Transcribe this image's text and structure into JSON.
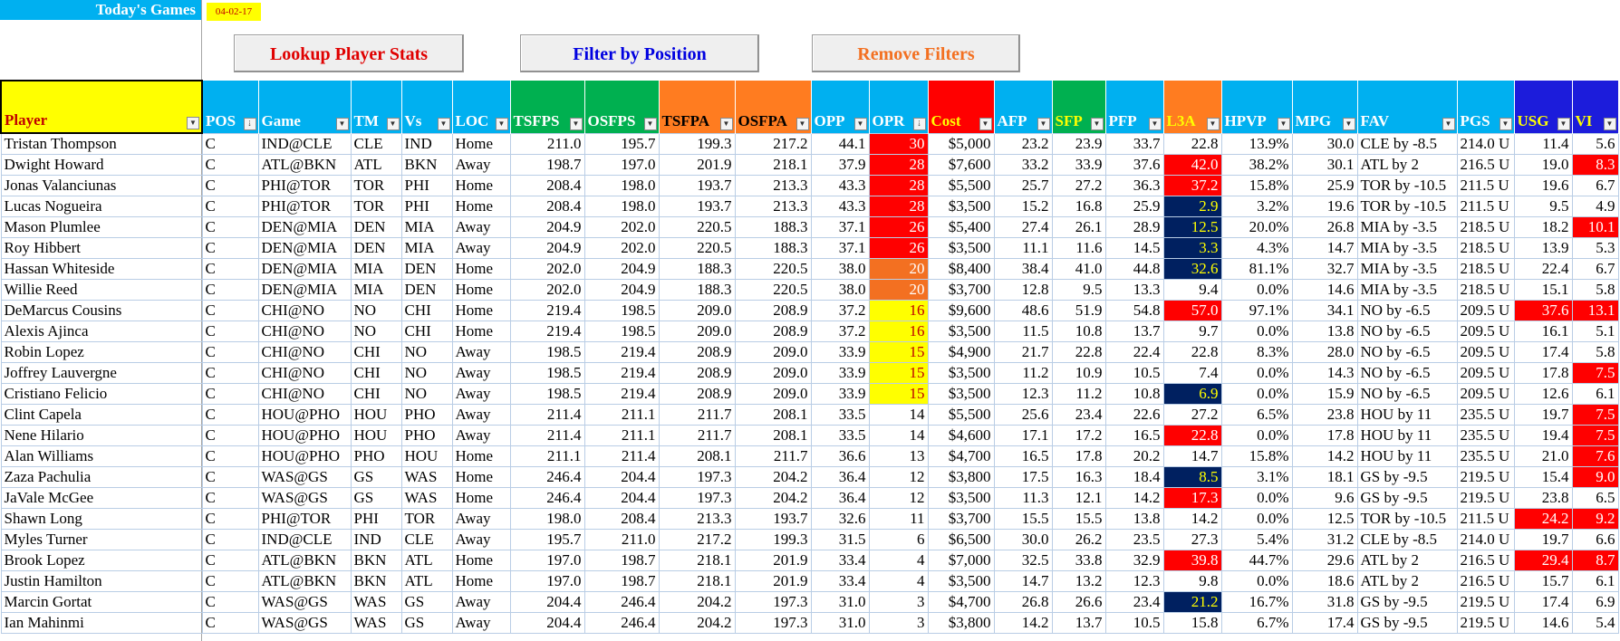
{
  "header": {
    "title": "Today's Games",
    "date": "04-02-17"
  },
  "buttons": {
    "lookup": "Lookup Player Stats",
    "filter": "Filter by Position",
    "remove": "Remove Filters"
  },
  "colors": {
    "red": "#ff0000",
    "orange": "#f37021",
    "yellow": "#ffff00",
    "navy": "#002060",
    "header_blue": "#00b0f0",
    "header_green": "#00b050",
    "header_orange": "#ff7c20",
    "header_yellow": "#ffff00",
    "header_navy": "#1c1cdb"
  },
  "columns": [
    {
      "key": "player",
      "label": "Player",
      "width": 222,
      "bg": "#ffff00",
      "fg": "#c00000",
      "align": "l"
    },
    {
      "key": "pos",
      "label": "POS",
      "width": 62,
      "bg": "#00b0f0",
      "fg": "#ffffff",
      "align": "l",
      "sorted": true
    },
    {
      "key": "game",
      "label": "Game",
      "width": 102,
      "bg": "#00b0f0",
      "fg": "#ffffff",
      "align": "l"
    },
    {
      "key": "tm",
      "label": "TM",
      "width": 56,
      "bg": "#00b0f0",
      "fg": "#ffffff",
      "align": "l"
    },
    {
      "key": "vs",
      "label": "Vs",
      "width": 56,
      "bg": "#00b0f0",
      "fg": "#ffffff",
      "align": "l"
    },
    {
      "key": "loc",
      "label": "LOC",
      "width": 64,
      "bg": "#00b0f0",
      "fg": "#ffffff",
      "align": "l"
    },
    {
      "key": "tsfps",
      "label": "TSFPS",
      "width": 82,
      "bg": "#00b050",
      "fg": "#ffffff",
      "align": "r"
    },
    {
      "key": "osfps",
      "label": "OSFPS",
      "width": 82,
      "bg": "#00b050",
      "fg": "#ffffff",
      "align": "r"
    },
    {
      "key": "tsfpa",
      "label": "TSFPA",
      "width": 84,
      "bg": "#ff7c20",
      "fg": "#000000",
      "align": "r"
    },
    {
      "key": "osfpa",
      "label": "OSFPA",
      "width": 84,
      "bg": "#ff7c20",
      "fg": "#000000",
      "align": "r"
    },
    {
      "key": "opp",
      "label": "OPP",
      "width": 64,
      "bg": "#00b0f0",
      "fg": "#ffffff",
      "align": "r"
    },
    {
      "key": "opr",
      "label": "OPR",
      "width": 65,
      "bg": "#00b0f0",
      "fg": "#ffffff",
      "align": "r",
      "sorted": true
    },
    {
      "key": "cost",
      "label": "Cost",
      "width": 73,
      "bg": "#ff0000",
      "fg": "#ffff00",
      "align": "r"
    },
    {
      "key": "afp",
      "label": "AFP",
      "width": 64,
      "bg": "#00b0f0",
      "fg": "#ffffff",
      "align": "r"
    },
    {
      "key": "sfp",
      "label": "SFP",
      "width": 59,
      "bg": "#00b050",
      "fg": "#ffff00",
      "align": "r"
    },
    {
      "key": "pfp",
      "label": "PFP",
      "width": 64,
      "bg": "#00b0f0",
      "fg": "#ffffff",
      "align": "r"
    },
    {
      "key": "l3a",
      "label": "L3A",
      "width": 64,
      "bg": "#ff7c20",
      "fg": "#ffff00",
      "align": "r"
    },
    {
      "key": "hpvp",
      "label": "HPVP",
      "width": 78,
      "bg": "#00b0f0",
      "fg": "#ffffff",
      "align": "r"
    },
    {
      "key": "mpg",
      "label": "MPG",
      "width": 72,
      "bg": "#00b0f0",
      "fg": "#ffffff",
      "align": "r"
    },
    {
      "key": "fav",
      "label": "FAV",
      "width": 110,
      "bg": "#00b0f0",
      "fg": "#ffffff",
      "align": "l"
    },
    {
      "key": "pgs",
      "label": "PGS",
      "width": 63,
      "bg": "#00b0f0",
      "fg": "#ffffff",
      "align": "l"
    },
    {
      "key": "usg",
      "label": "USG",
      "width": 64,
      "bg": "#1c1cdb",
      "fg": "#ffff00",
      "align": "r"
    },
    {
      "key": "vi",
      "label": "VI",
      "width": 51,
      "bg": "#1c1cdb",
      "fg": "#ffff00",
      "align": "r"
    }
  ],
  "rows": [
    {
      "player": "Tristan Thompson",
      "pos": "C",
      "game": "IND@CLE",
      "tm": "CLE",
      "vs": "IND",
      "loc": "Home",
      "tsfps": "211.0",
      "osfps": "195.7",
      "tsfpa": "199.3",
      "osfpa": "217.2",
      "opp": "44.1",
      "opr": "30",
      "cost": "$5,000",
      "afp": "23.2",
      "sfp": "23.9",
      "pfp": "33.7",
      "l3a": "22.8",
      "hpvp": "13.9%",
      "mpg": "30.0",
      "fav": "CLE by -8.5",
      "pgs": "214.0 U",
      "usg": "11.4",
      "vi": "5.6",
      "hl": {
        "opr": "red"
      }
    },
    {
      "player": "Dwight Howard",
      "pos": "C",
      "game": "ATL@BKN",
      "tm": "ATL",
      "vs": "BKN",
      "loc": "Away",
      "tsfps": "198.7",
      "osfps": "197.0",
      "tsfpa": "201.9",
      "osfpa": "218.1",
      "opp": "37.9",
      "opr": "28",
      "cost": "$7,600",
      "afp": "33.2",
      "sfp": "33.9",
      "pfp": "37.6",
      "l3a": "42.0",
      "hpvp": "38.2%",
      "mpg": "30.1",
      "fav": "ATL by 2",
      "pgs": "216.5 U",
      "usg": "19.0",
      "vi": "8.3",
      "hl": {
        "opr": "red",
        "l3a": "red",
        "vi": "red"
      }
    },
    {
      "player": "Jonas Valanciunas",
      "pos": "C",
      "game": "PHI@TOR",
      "tm": "TOR",
      "vs": "PHI",
      "loc": "Home",
      "tsfps": "208.4",
      "osfps": "198.0",
      "tsfpa": "193.7",
      "osfpa": "213.3",
      "opp": "43.3",
      "opr": "28",
      "cost": "$5,500",
      "afp": "25.7",
      "sfp": "27.2",
      "pfp": "36.3",
      "l3a": "37.2",
      "hpvp": "15.8%",
      "mpg": "25.9",
      "fav": "TOR by -10.5",
      "pgs": "211.5 U",
      "usg": "19.6",
      "vi": "6.7",
      "hl": {
        "opr": "red",
        "l3a": "red"
      }
    },
    {
      "player": "Lucas Nogueira",
      "pos": "C",
      "game": "PHI@TOR",
      "tm": "TOR",
      "vs": "PHI",
      "loc": "Home",
      "tsfps": "208.4",
      "osfps": "198.0",
      "tsfpa": "193.7",
      "osfpa": "213.3",
      "opp": "43.3",
      "opr": "28",
      "cost": "$3,500",
      "afp": "15.2",
      "sfp": "16.8",
      "pfp": "25.9",
      "l3a": "2.9",
      "hpvp": "3.2%",
      "mpg": "19.6",
      "fav": "TOR by -10.5",
      "pgs": "211.5 U",
      "usg": "9.5",
      "vi": "4.9",
      "hl": {
        "opr": "red",
        "l3a": "navy"
      }
    },
    {
      "player": "Mason Plumlee",
      "pos": "C",
      "game": "DEN@MIA",
      "tm": "DEN",
      "vs": "MIA",
      "loc": "Away",
      "tsfps": "204.9",
      "osfps": "202.0",
      "tsfpa": "220.5",
      "osfpa": "188.3",
      "opp": "37.1",
      "opr": "26",
      "cost": "$5,400",
      "afp": "27.4",
      "sfp": "26.1",
      "pfp": "28.9",
      "l3a": "12.5",
      "hpvp": "20.0%",
      "mpg": "26.8",
      "fav": "MIA by -3.5",
      "pgs": "218.5 U",
      "usg": "18.2",
      "vi": "10.1",
      "hl": {
        "opr": "red",
        "l3a": "navy",
        "vi": "red"
      }
    },
    {
      "player": "Roy Hibbert",
      "pos": "C",
      "game": "DEN@MIA",
      "tm": "DEN",
      "vs": "MIA",
      "loc": "Away",
      "tsfps": "204.9",
      "osfps": "202.0",
      "tsfpa": "220.5",
      "osfpa": "188.3",
      "opp": "37.1",
      "opr": "26",
      "cost": "$3,500",
      "afp": "11.1",
      "sfp": "11.6",
      "pfp": "14.5",
      "l3a": "3.3",
      "hpvp": "4.3%",
      "mpg": "14.7",
      "fav": "MIA by -3.5",
      "pgs": "218.5 U",
      "usg": "13.9",
      "vi": "5.3",
      "hl": {
        "opr": "red",
        "l3a": "navy"
      }
    },
    {
      "player": "Hassan Whiteside",
      "pos": "C",
      "game": "DEN@MIA",
      "tm": "MIA",
      "vs": "DEN",
      "loc": "Home",
      "tsfps": "202.0",
      "osfps": "204.9",
      "tsfpa": "188.3",
      "osfpa": "220.5",
      "opp": "38.0",
      "opr": "20",
      "cost": "$8,400",
      "afp": "38.4",
      "sfp": "41.0",
      "pfp": "44.8",
      "l3a": "32.6",
      "hpvp": "81.1%",
      "mpg": "32.7",
      "fav": "MIA by -3.5",
      "pgs": "218.5 U",
      "usg": "22.4",
      "vi": "6.7",
      "hl": {
        "opr": "orange",
        "l3a": "navy"
      }
    },
    {
      "player": "Willie Reed",
      "pos": "C",
      "game": "DEN@MIA",
      "tm": "MIA",
      "vs": "DEN",
      "loc": "Home",
      "tsfps": "202.0",
      "osfps": "204.9",
      "tsfpa": "188.3",
      "osfpa": "220.5",
      "opp": "38.0",
      "opr": "20",
      "cost": "$3,700",
      "afp": "12.8",
      "sfp": "9.5",
      "pfp": "13.3",
      "l3a": "9.4",
      "hpvp": "0.0%",
      "mpg": "14.6",
      "fav": "MIA by -3.5",
      "pgs": "218.5 U",
      "usg": "15.1",
      "vi": "5.8",
      "hl": {
        "opr": "orange"
      }
    },
    {
      "player": "DeMarcus Cousins",
      "pos": "C",
      "game": "CHI@NO",
      "tm": "NO",
      "vs": "CHI",
      "loc": "Home",
      "tsfps": "219.4",
      "osfps": "198.5",
      "tsfpa": "209.0",
      "osfpa": "208.9",
      "opp": "37.2",
      "opr": "16",
      "cost": "$9,600",
      "afp": "48.6",
      "sfp": "51.9",
      "pfp": "54.8",
      "l3a": "57.0",
      "hpvp": "97.1%",
      "mpg": "34.1",
      "fav": "NO by -6.5",
      "pgs": "209.5 U",
      "usg": "37.6",
      "vi": "13.1",
      "hl": {
        "opr": "yellow",
        "l3a": "red",
        "usg": "red",
        "vi": "red"
      }
    },
    {
      "player": "Alexis Ajinca",
      "pos": "C",
      "game": "CHI@NO",
      "tm": "NO",
      "vs": "CHI",
      "loc": "Home",
      "tsfps": "219.4",
      "osfps": "198.5",
      "tsfpa": "209.0",
      "osfpa": "208.9",
      "opp": "37.2",
      "opr": "16",
      "cost": "$3,500",
      "afp": "11.5",
      "sfp": "10.8",
      "pfp": "13.7",
      "l3a": "9.7",
      "hpvp": "0.0%",
      "mpg": "13.8",
      "fav": "NO by -6.5",
      "pgs": "209.5 U",
      "usg": "16.1",
      "vi": "5.1",
      "hl": {
        "opr": "yellow"
      }
    },
    {
      "player": "Robin Lopez",
      "pos": "C",
      "game": "CHI@NO",
      "tm": "CHI",
      "vs": "NO",
      "loc": "Away",
      "tsfps": "198.5",
      "osfps": "219.4",
      "tsfpa": "208.9",
      "osfpa": "209.0",
      "opp": "33.9",
      "opr": "15",
      "cost": "$4,900",
      "afp": "21.7",
      "sfp": "22.8",
      "pfp": "22.4",
      "l3a": "22.8",
      "hpvp": "8.3%",
      "mpg": "28.0",
      "fav": "NO by -6.5",
      "pgs": "209.5 U",
      "usg": "17.4",
      "vi": "5.8",
      "hl": {
        "opr": "yellow"
      }
    },
    {
      "player": "Joffrey Lauvergne",
      "pos": "C",
      "game": "CHI@NO",
      "tm": "CHI",
      "vs": "NO",
      "loc": "Away",
      "tsfps": "198.5",
      "osfps": "219.4",
      "tsfpa": "208.9",
      "osfpa": "209.0",
      "opp": "33.9",
      "opr": "15",
      "cost": "$3,500",
      "afp": "11.2",
      "sfp": "10.9",
      "pfp": "10.5",
      "l3a": "7.4",
      "hpvp": "0.0%",
      "mpg": "14.3",
      "fav": "NO by -6.5",
      "pgs": "209.5 U",
      "usg": "17.8",
      "vi": "7.5",
      "hl": {
        "opr": "yellow",
        "vi": "red"
      }
    },
    {
      "player": "Cristiano Felicio",
      "pos": "C",
      "game": "CHI@NO",
      "tm": "CHI",
      "vs": "NO",
      "loc": "Away",
      "tsfps": "198.5",
      "osfps": "219.4",
      "tsfpa": "208.9",
      "osfpa": "209.0",
      "opp": "33.9",
      "opr": "15",
      "cost": "$3,500",
      "afp": "12.3",
      "sfp": "11.2",
      "pfp": "10.8",
      "l3a": "6.9",
      "hpvp": "0.0%",
      "mpg": "15.9",
      "fav": "NO by -6.5",
      "pgs": "209.5 U",
      "usg": "12.6",
      "vi": "6.1",
      "hl": {
        "opr": "yellow",
        "l3a": "navy"
      }
    },
    {
      "player": "Clint Capela",
      "pos": "C",
      "game": "HOU@PHO",
      "tm": "HOU",
      "vs": "PHO",
      "loc": "Away",
      "tsfps": "211.4",
      "osfps": "211.1",
      "tsfpa": "211.7",
      "osfpa": "208.1",
      "opp": "33.5",
      "opr": "14",
      "cost": "$5,500",
      "afp": "25.6",
      "sfp": "23.4",
      "pfp": "22.6",
      "l3a": "27.2",
      "hpvp": "6.5%",
      "mpg": "23.8",
      "fav": "HOU by 11",
      "pgs": "235.5 U",
      "usg": "19.7",
      "vi": "7.5",
      "hl": {
        "vi": "red"
      }
    },
    {
      "player": "Nene Hilario",
      "pos": "C",
      "game": "HOU@PHO",
      "tm": "HOU",
      "vs": "PHO",
      "loc": "Away",
      "tsfps": "211.4",
      "osfps": "211.1",
      "tsfpa": "211.7",
      "osfpa": "208.1",
      "opp": "33.5",
      "opr": "14",
      "cost": "$4,600",
      "afp": "17.1",
      "sfp": "17.2",
      "pfp": "16.5",
      "l3a": "22.8",
      "hpvp": "0.0%",
      "mpg": "17.8",
      "fav": "HOU by 11",
      "pgs": "235.5 U",
      "usg": "19.4",
      "vi": "7.5",
      "hl": {
        "l3a": "red",
        "vi": "red"
      }
    },
    {
      "player": "Alan Williams",
      "pos": "C",
      "game": "HOU@PHO",
      "tm": "PHO",
      "vs": "HOU",
      "loc": "Home",
      "tsfps": "211.1",
      "osfps": "211.4",
      "tsfpa": "208.1",
      "osfpa": "211.7",
      "opp": "36.6",
      "opr": "13",
      "cost": "$4,700",
      "afp": "16.5",
      "sfp": "17.8",
      "pfp": "20.2",
      "l3a": "14.7",
      "hpvp": "15.8%",
      "mpg": "14.2",
      "fav": "HOU by 11",
      "pgs": "235.5 U",
      "usg": "21.0",
      "vi": "7.6",
      "hl": {
        "vi": "red"
      }
    },
    {
      "player": "Zaza Pachulia",
      "pos": "C",
      "game": "WAS@GS",
      "tm": "GS",
      "vs": "WAS",
      "loc": "Home",
      "tsfps": "246.4",
      "osfps": "204.4",
      "tsfpa": "197.3",
      "osfpa": "204.2",
      "opp": "36.4",
      "opr": "12",
      "cost": "$3,800",
      "afp": "17.5",
      "sfp": "16.3",
      "pfp": "18.4",
      "l3a": "8.5",
      "hpvp": "3.1%",
      "mpg": "18.1",
      "fav": "GS by -9.5",
      "pgs": "219.5 U",
      "usg": "15.4",
      "vi": "9.0",
      "hl": {
        "l3a": "navy",
        "vi": "red"
      }
    },
    {
      "player": "JaVale McGee",
      "pos": "C",
      "game": "WAS@GS",
      "tm": "GS",
      "vs": "WAS",
      "loc": "Home",
      "tsfps": "246.4",
      "osfps": "204.4",
      "tsfpa": "197.3",
      "osfpa": "204.2",
      "opp": "36.4",
      "opr": "12",
      "cost": "$3,500",
      "afp": "11.3",
      "sfp": "12.1",
      "pfp": "14.2",
      "l3a": "17.3",
      "hpvp": "0.0%",
      "mpg": "9.6",
      "fav": "GS by -9.5",
      "pgs": "219.5 U",
      "usg": "23.8",
      "vi": "6.5",
      "hl": {
        "l3a": "red"
      }
    },
    {
      "player": "Shawn Long",
      "pos": "C",
      "game": "PHI@TOR",
      "tm": "PHI",
      "vs": "TOR",
      "loc": "Away",
      "tsfps": "198.0",
      "osfps": "208.4",
      "tsfpa": "213.3",
      "osfpa": "193.7",
      "opp": "32.6",
      "opr": "11",
      "cost": "$3,700",
      "afp": "15.5",
      "sfp": "15.5",
      "pfp": "13.8",
      "l3a": "14.2",
      "hpvp": "0.0%",
      "mpg": "12.5",
      "fav": "TOR by -10.5",
      "pgs": "211.5 U",
      "usg": "24.2",
      "vi": "9.2",
      "hl": {
        "usg": "red",
        "vi": "red"
      }
    },
    {
      "player": "Myles Turner",
      "pos": "C",
      "game": "IND@CLE",
      "tm": "IND",
      "vs": "CLE",
      "loc": "Away",
      "tsfps": "195.7",
      "osfps": "211.0",
      "tsfpa": "217.2",
      "osfpa": "199.3",
      "opp": "31.5",
      "opr": "6",
      "cost": "$6,500",
      "afp": "30.0",
      "sfp": "26.2",
      "pfp": "23.5",
      "l3a": "27.3",
      "hpvp": "5.4%",
      "mpg": "31.2",
      "fav": "CLE by -8.5",
      "pgs": "214.0 U",
      "usg": "19.7",
      "vi": "6.6",
      "hl": {}
    },
    {
      "player": "Brook Lopez",
      "pos": "C",
      "game": "ATL@BKN",
      "tm": "BKN",
      "vs": "ATL",
      "loc": "Home",
      "tsfps": "197.0",
      "osfps": "198.7",
      "tsfpa": "218.1",
      "osfpa": "201.9",
      "opp": "33.4",
      "opr": "4",
      "cost": "$7,000",
      "afp": "32.5",
      "sfp": "33.8",
      "pfp": "32.9",
      "l3a": "39.8",
      "hpvp": "44.7%",
      "mpg": "29.6",
      "fav": "ATL by 2",
      "pgs": "216.5 U",
      "usg": "29.4",
      "vi": "8.7",
      "hl": {
        "l3a": "red",
        "usg": "red",
        "vi": "red"
      }
    },
    {
      "player": "Justin Hamilton",
      "pos": "C",
      "game": "ATL@BKN",
      "tm": "BKN",
      "vs": "ATL",
      "loc": "Home",
      "tsfps": "197.0",
      "osfps": "198.7",
      "tsfpa": "218.1",
      "osfpa": "201.9",
      "opp": "33.4",
      "opr": "4",
      "cost": "$3,500",
      "afp": "14.7",
      "sfp": "13.2",
      "pfp": "12.3",
      "l3a": "9.8",
      "hpvp": "0.0%",
      "mpg": "18.6",
      "fav": "ATL by 2",
      "pgs": "216.5 U",
      "usg": "15.7",
      "vi": "6.1",
      "hl": {}
    },
    {
      "player": "Marcin Gortat",
      "pos": "C",
      "game": "WAS@GS",
      "tm": "WAS",
      "vs": "GS",
      "loc": "Away",
      "tsfps": "204.4",
      "osfps": "246.4",
      "tsfpa": "204.2",
      "osfpa": "197.3",
      "opp": "31.0",
      "opr": "3",
      "cost": "$4,700",
      "afp": "26.8",
      "sfp": "26.6",
      "pfp": "23.4",
      "l3a": "21.2",
      "hpvp": "16.7%",
      "mpg": "31.8",
      "fav": "GS by -9.5",
      "pgs": "219.5 U",
      "usg": "17.4",
      "vi": "6.9",
      "hl": {
        "l3a": "navy"
      }
    },
    {
      "player": "Ian Mahinmi",
      "pos": "C",
      "game": "WAS@GS",
      "tm": "WAS",
      "vs": "GS",
      "loc": "Away",
      "tsfps": "204.4",
      "osfps": "246.4",
      "tsfpa": "204.2",
      "osfpa": "197.3",
      "opp": "31.0",
      "opr": "3",
      "cost": "$3,800",
      "afp": "14.2",
      "sfp": "13.7",
      "pfp": "10.5",
      "l3a": "15.8",
      "hpvp": "6.7%",
      "mpg": "17.4",
      "fav": "GS by -9.5",
      "pgs": "219.5 U",
      "usg": "14.6",
      "vi": "5.4",
      "hl": {}
    }
  ]
}
